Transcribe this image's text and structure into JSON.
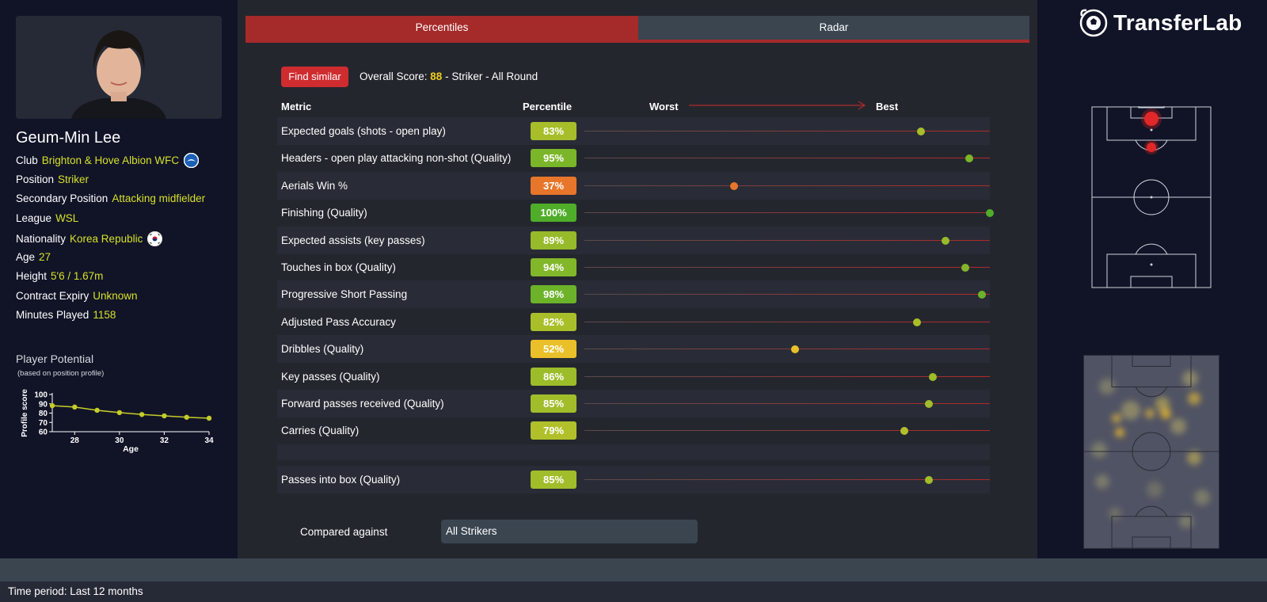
{
  "player": {
    "name": "Geum-Min Lee",
    "details": [
      {
        "label": "Club",
        "value": "Brighton & Hove Albion WFC",
        "icon": "club-badge-icon"
      },
      {
        "label": "Position",
        "value": "Striker"
      },
      {
        "label": "Secondary Position",
        "value": "Attacking midfielder"
      },
      {
        "label": "League",
        "value": "WSL"
      },
      {
        "label": "Nationality",
        "value": "Korea Republic",
        "icon": "flag-korea-icon"
      },
      {
        "label": "Age",
        "value": "27"
      },
      {
        "label": "Height",
        "value": "5'6 / 1.67m"
      },
      {
        "label": "Contract Expiry",
        "value": "Unknown"
      },
      {
        "label": "Minutes Played",
        "value": "1158"
      }
    ]
  },
  "potential": {
    "title": "Player Potential",
    "subtitle": "(based on position profile)",
    "chart_data": {
      "type": "line",
      "x": [
        27,
        28,
        29,
        30,
        31,
        32,
        33,
        34
      ],
      "values": [
        88,
        86.5,
        83,
        80.5,
        78.5,
        77,
        75.5,
        74.5
      ],
      "xlabel": "Age",
      "ylabel": "Profile score",
      "xticks": [
        "28",
        "30",
        "32",
        "34"
      ],
      "yticks": [
        "60",
        "70",
        "80",
        "90",
        "100"
      ],
      "ylim": [
        60,
        100
      ],
      "xlim": [
        27,
        34
      ],
      "color": "#c5cc2a"
    }
  },
  "tabs": [
    {
      "label": "Percentiles",
      "active": true
    },
    {
      "label": "Radar",
      "active": false
    }
  ],
  "find_similar": "Find similar",
  "overall": {
    "prefix": "Overall Score:",
    "score": "88",
    "suffix": "- Striker - All Round"
  },
  "table_headers": {
    "metric": "Metric",
    "percentile": "Percentile",
    "worst": "Worst",
    "best": "Best"
  },
  "metrics": [
    {
      "label": "Expected goals (shots - open play)",
      "percentile": "83%",
      "value": 83,
      "color": "#a7be2a"
    },
    {
      "label": "Headers - open play attacking non-shot (Quality)",
      "percentile": "95%",
      "value": 95,
      "color": "#7bb52a"
    },
    {
      "label": "Aerials Win %",
      "percentile": "37%",
      "value": 37,
      "color": "#e8762a"
    },
    {
      "label": "Finishing (Quality)",
      "percentile": "100%",
      "value": 100,
      "color": "#4fad2a"
    },
    {
      "label": "Expected assists (key passes)",
      "percentile": "89%",
      "value": 89,
      "color": "#96ba2a"
    },
    {
      "label": "Touches in box (Quality)",
      "percentile": "94%",
      "value": 94,
      "color": "#83b72a"
    },
    {
      "label": "Progressive Short Passing",
      "percentile": "98%",
      "value": 98,
      "color": "#6cb32a"
    },
    {
      "label": "Adjusted Pass Accuracy",
      "percentile": "82%",
      "value": 82,
      "color": "#a9bf2a"
    },
    {
      "label": "Dribbles (Quality)",
      "percentile": "52%",
      "value": 52,
      "color": "#e9c02a"
    },
    {
      "label": "Key passes (Quality)",
      "percentile": "86%",
      "value": 86,
      "color": "#9dbc2a"
    },
    {
      "label": "Forward passes received (Quality)",
      "percentile": "85%",
      "value": 85,
      "color": "#a1bd2a"
    },
    {
      "label": "Carries (Quality)",
      "percentile": "79%",
      "value": 79,
      "color": "#b1c02a"
    }
  ],
  "extra_metrics": [
    {
      "label": "Passes into box (Quality)",
      "percentile": "85%",
      "value": 85,
      "color": "#a1bd2a"
    }
  ],
  "compared": {
    "label": "Compared against",
    "value": "All Strikers"
  },
  "brand": {
    "name": "TransferLab",
    "icon": "transferlab-logo-icon"
  },
  "footer": {
    "time_period": "Time period: Last 12 months"
  }
}
